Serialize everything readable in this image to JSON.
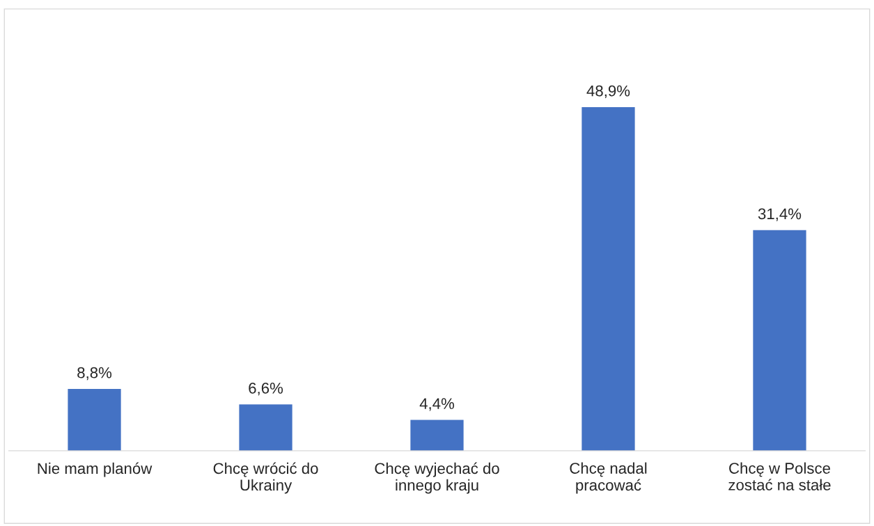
{
  "chart_data": {
    "type": "bar",
    "categories": [
      "Nie mam planów",
      "Chcę wrócić do\nUkrainy",
      "Chcę wyjechać do\ninnego kraju",
      "Chcę nadal\npracować",
      "Chcę w Polsce\nzostać na stałe"
    ],
    "values": [
      8.8,
      6.6,
      4.4,
      48.9,
      31.4
    ],
    "value_labels": [
      "8,8%",
      "6,6%",
      "4,4%",
      "48,9%",
      "31,4%"
    ],
    "color": "#4472c4",
    "grid": false,
    "legend": false
  }
}
